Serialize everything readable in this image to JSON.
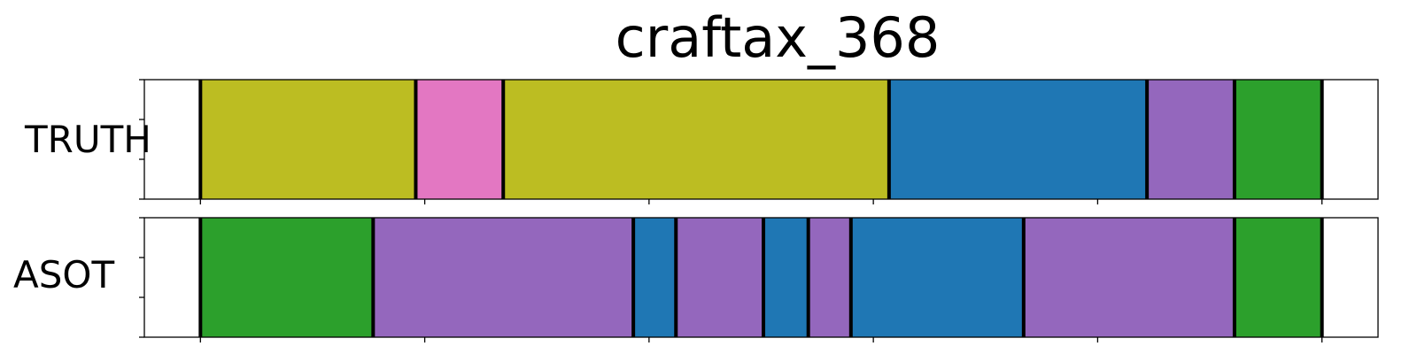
{
  "chart_data": {
    "type": "segmentation_timeline",
    "title": "craftax_368",
    "x_range": [
      -0.25,
      5.25
    ],
    "colors": {
      "olive": "#bcbd22",
      "pink": "#e377c2",
      "blue": "#1f77b4",
      "purple": "#9467bd",
      "green": "#2ca02c",
      "boundary": "#000000"
    },
    "rows": [
      {
        "label": "TRUTH",
        "segments": [
          {
            "start": 0.0,
            "end": 0.96,
            "color": "olive"
          },
          {
            "start": 0.96,
            "end": 1.35,
            "color": "pink"
          },
          {
            "start": 1.35,
            "end": 3.07,
            "color": "olive"
          },
          {
            "start": 3.07,
            "end": 4.22,
            "color": "blue"
          },
          {
            "start": 4.22,
            "end": 4.61,
            "color": "purple"
          },
          {
            "start": 4.61,
            "end": 5.0,
            "color": "green"
          }
        ]
      },
      {
        "label": "ASOT",
        "segments": [
          {
            "start": 0.0,
            "end": 0.77,
            "color": "green"
          },
          {
            "start": 0.77,
            "end": 1.93,
            "color": "purple"
          },
          {
            "start": 1.93,
            "end": 2.12,
            "color": "blue"
          },
          {
            "start": 2.12,
            "end": 2.51,
            "color": "purple"
          },
          {
            "start": 2.51,
            "end": 2.71,
            "color": "blue"
          },
          {
            "start": 2.71,
            "end": 2.9,
            "color": "purple"
          },
          {
            "start": 2.9,
            "end": 3.67,
            "color": "blue"
          },
          {
            "start": 3.67,
            "end": 4.61,
            "color": "purple"
          },
          {
            "start": 4.61,
            "end": 5.0,
            "color": "green"
          }
        ]
      }
    ],
    "x_ticks": [
      0,
      1,
      2,
      3,
      4,
      5
    ],
    "y_ticks_per_row": 4,
    "tick_labels_shown": false,
    "grid": false
  }
}
